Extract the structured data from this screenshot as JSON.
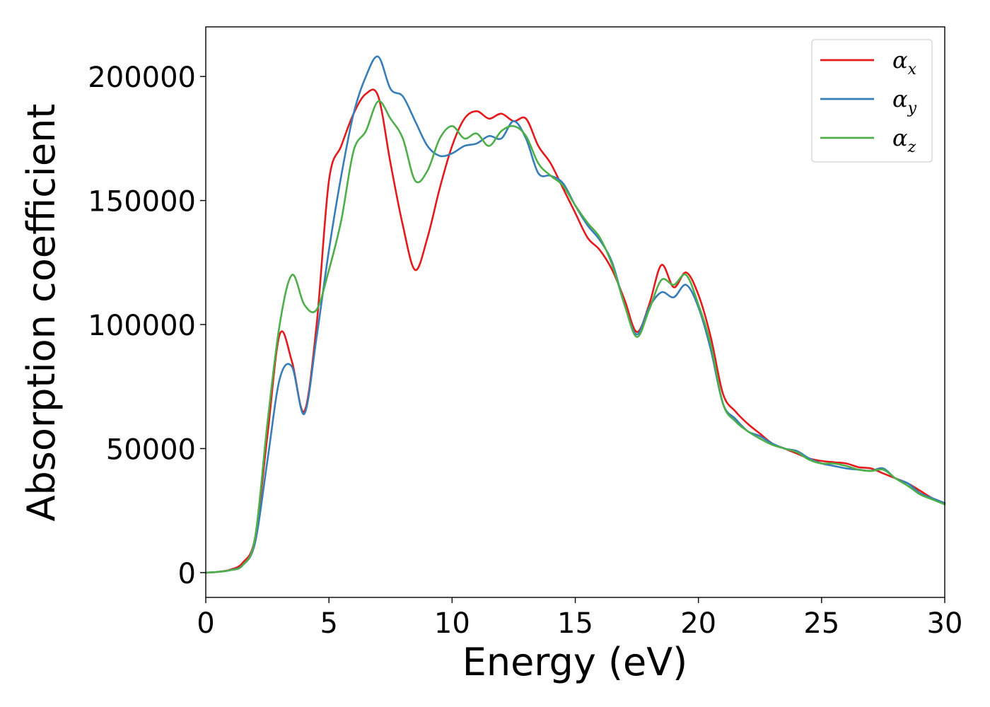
{
  "chart_data": {
    "type": "line",
    "xlabel": "Energy (eV)",
    "ylabel": "Absorption coefficient",
    "xlim": [
      0,
      30
    ],
    "ylim": [
      -10000,
      220000
    ],
    "x_ticks": [
      "0",
      "5",
      "10",
      "15",
      "20",
      "25",
      "30"
    ],
    "y_ticks": [
      "0",
      "50000",
      "100000",
      "150000",
      "200000"
    ],
    "grid": false,
    "legend_position": "top-right",
    "x": [
      0,
      0.5,
      1.0,
      1.5,
      2.0,
      2.5,
      3.0,
      3.5,
      4.0,
      4.5,
      5.0,
      5.5,
      6.0,
      6.5,
      7.0,
      7.5,
      8.0,
      8.5,
      9.0,
      9.5,
      10.0,
      10.5,
      11.0,
      11.5,
      12.0,
      12.5,
      13.0,
      13.5,
      14.0,
      14.5,
      15.0,
      15.5,
      16.0,
      16.5,
      17.0,
      17.5,
      18.0,
      18.5,
      19.0,
      19.5,
      20.0,
      20.5,
      21.0,
      21.5,
      22.0,
      22.5,
      23.0,
      23.5,
      24.0,
      24.5,
      25.0,
      25.5,
      26.0,
      26.5,
      27.0,
      27.5,
      28.0,
      28.5,
      29.0,
      29.5,
      30.0
    ],
    "series": [
      {
        "name": "α",
        "subscript": "x",
        "color": "#e41a1c",
        "values": [
          0,
          300,
          1200,
          4000,
          14000,
          55000,
          96000,
          85000,
          65000,
          100000,
          158000,
          172000,
          185000,
          193000,
          192000,
          165000,
          140000,
          122000,
          135000,
          155000,
          172000,
          183000,
          186000,
          183000,
          185000,
          182000,
          183000,
          172000,
          165000,
          155000,
          145000,
          135000,
          130000,
          122000,
          110000,
          97000,
          108000,
          124000,
          115000,
          121000,
          112000,
          95000,
          72000,
          65000,
          60000,
          56000,
          52000,
          50000,
          48000,
          46000,
          45000,
          44500,
          44000,
          42500,
          42000,
          40000,
          38000,
          36000,
          33000,
          30000,
          28000
        ]
      },
      {
        "name": "α",
        "subscript": "y",
        "color": "#377eb8",
        "values": [
          0,
          300,
          1000,
          3000,
          12000,
          45000,
          78000,
          83000,
          64000,
          95000,
          130000,
          160000,
          185000,
          200000,
          208000,
          195000,
          192000,
          182000,
          172000,
          168000,
          169000,
          172000,
          173000,
          176000,
          175000,
          182000,
          175000,
          161000,
          160000,
          157000,
          148000,
          140000,
          134000,
          125000,
          108000,
          96000,
          107000,
          113000,
          111000,
          116000,
          107000,
          90000,
          68000,
          62000,
          57000,
          55000,
          52000,
          50000,
          49000,
          46000,
          44000,
          43000,
          42000,
          41500,
          41000,
          42000,
          38000,
          36000,
          32000,
          30000,
          28000
        ]
      },
      {
        "name": "α",
        "subscript": "z",
        "color": "#4daf4a",
        "values": [
          0,
          300,
          1000,
          3000,
          14000,
          60000,
          100000,
          120000,
          108000,
          106000,
          122000,
          142000,
          170000,
          178000,
          190000,
          183000,
          175000,
          158000,
          162000,
          175000,
          180000,
          175000,
          177000,
          172000,
          178000,
          180000,
          176000,
          165000,
          160000,
          156000,
          148000,
          141000,
          135000,
          124000,
          108000,
          95000,
          106000,
          118000,
          116000,
          120000,
          108000,
          92000,
          68000,
          61000,
          57000,
          54000,
          51500,
          50000,
          48500,
          45500,
          44000,
          44000,
          43000,
          41500,
          41000,
          41500,
          38000,
          35000,
          31500,
          29500,
          27500
        ]
      }
    ]
  }
}
